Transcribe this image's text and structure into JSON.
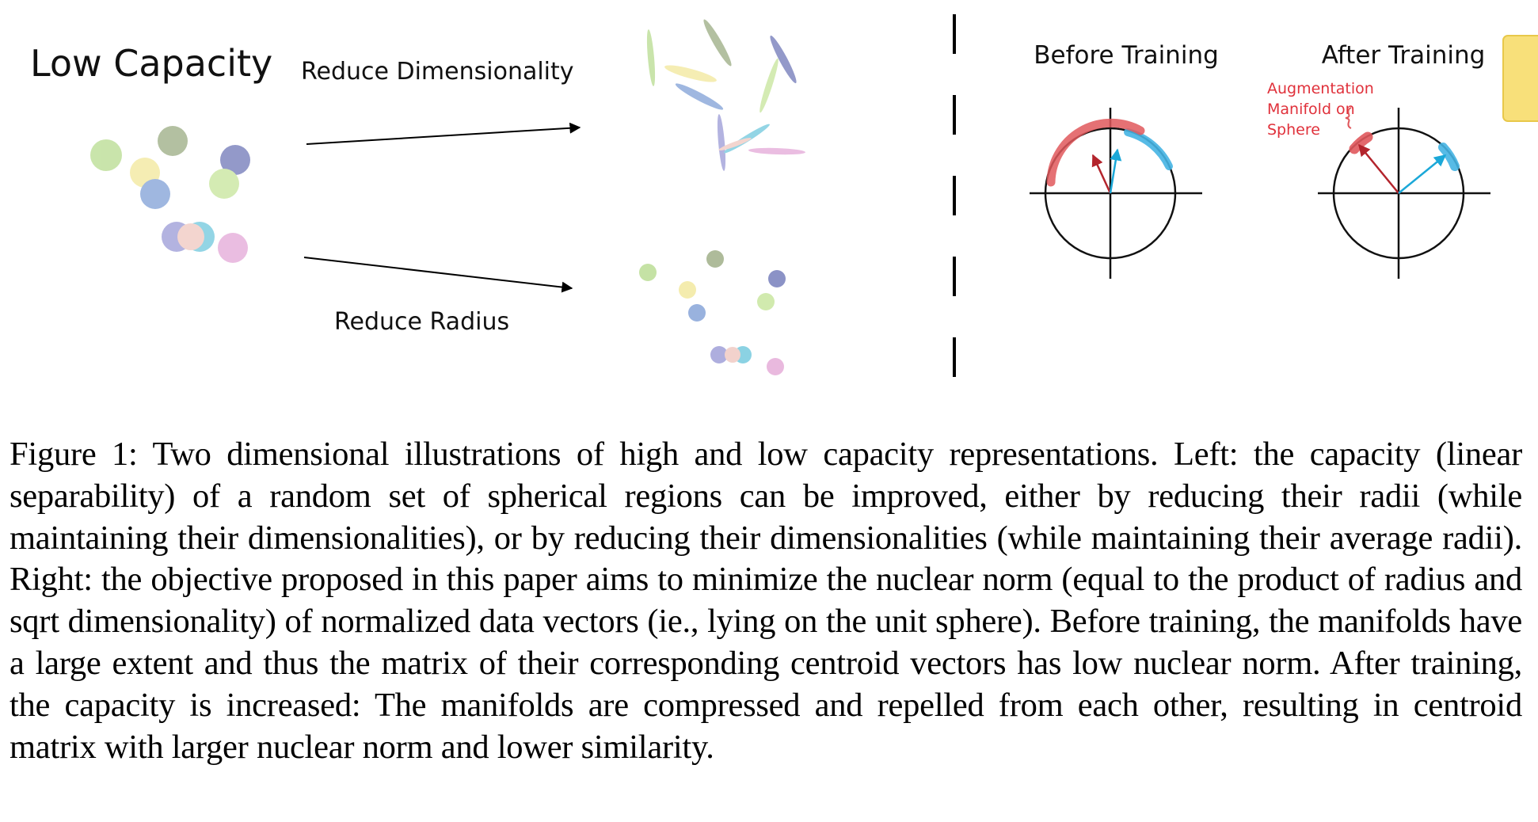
{
  "figure": {
    "left": {
      "heading": "Low Capacity",
      "top_arrow_label": "Reduce Dimensionality",
      "bottom_arrow_label": "Reduce Radius"
    },
    "right": {
      "before_title": "Before Training",
      "after_title": "After Training",
      "annotation": [
        "Augmentation",
        "Manifold on",
        "Sphere"
      ]
    },
    "colors": {
      "green": "#b7dc8f",
      "olive": "#9aab82",
      "yellow": "#f2e89a",
      "navy": "#7f88c4",
      "blue": "#7f9fd6",
      "cyan": "#6fc8dd",
      "pink": "#e4a8d7",
      "red": "#e0585c",
      "sky": "#45b4e3",
      "note": "#f8e07a"
    }
  },
  "caption": {
    "label": "Figure 1:",
    "text": "Two dimensional illustrations of high and low capacity representations. Left: the capacity (linear separability) of a random set of spherical regions can be improved, either by reducing their radii (while maintaining their dimensionalities), or by reducing their dimensionalities (while maintaining their average radii). Right: the objective proposed in this paper aims to minimize the nuclear norm (equal to the product of radius and sqrt dimensionality) of normalized data vectors (ie., lying on the unit sphere).  Before training, the manifolds have a large extent and thus the matrix of their corresponding centroid vectors has low nuclear norm. After training, the capacity is increased: The manifolds are compressed and repelled from each other, resulting in centroid matrix with larger nuclear norm and lower similarity."
  }
}
